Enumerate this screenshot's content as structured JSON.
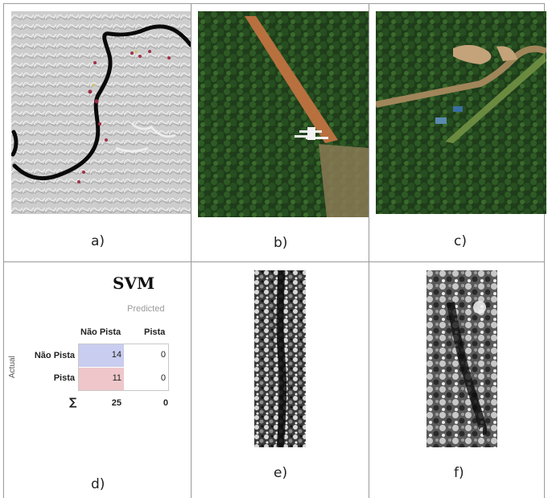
{
  "captions": {
    "a": "a)",
    "b": "b)",
    "c": "c)",
    "d": "d)",
    "e": "e)",
    "f": "f)"
  },
  "confusion_matrix": {
    "title": "SVM",
    "predicted_label": "Predicted",
    "actual_label": "Actual",
    "columns": [
      "Não Pista",
      "Pista"
    ],
    "rows": [
      {
        "label": "Não Pista",
        "values": [
          "14",
          "0"
        ]
      },
      {
        "label": "Pista",
        "values": [
          "11",
          "0"
        ]
      }
    ],
    "sum_symbol": "∑",
    "sums": [
      "25",
      "0"
    ],
    "colors": {
      "correct": "#c9cdef",
      "wrong": "#efc7cb"
    }
  },
  "colors": {
    "grid_line": "#9a9a9a",
    "forest": "#1f3d1a",
    "airstrip": "#b8703f",
    "river": "#0a0a0a"
  }
}
